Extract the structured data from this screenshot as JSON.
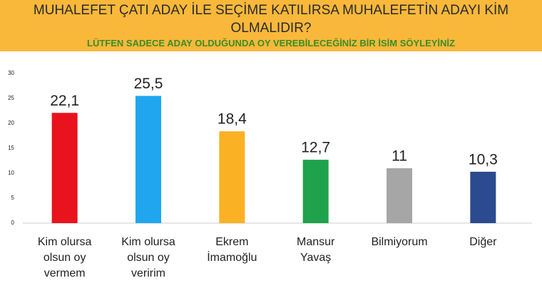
{
  "chart_data": {
    "type": "bar",
    "title": "MUHALEFET ÇATI ADAY İLE SEÇİME KATILIRSA MUHALEFETİN ADAYI KİM OLMALIDIR?",
    "subtitle": "LÜTFEN SADECE ADAY OLDUĞUNDA OY VEREBİLECEĞİNİZ BİR İSİM SÖYLEYİNİZ",
    "categories": [
      [
        "Kim olursa",
        "olsun oy",
        "vermem"
      ],
      [
        "Kim olursa",
        "olsun oy",
        "veririm"
      ],
      [
        "Ekrem",
        "İmamoğlu"
      ],
      [
        "Mansur",
        "Yavaş"
      ],
      [
        "Bilmiyorum"
      ],
      [
        "Diğer"
      ]
    ],
    "values": [
      22.1,
      25.5,
      18.4,
      12.7,
      11,
      10.3
    ],
    "value_labels": [
      "22,1",
      "25,5",
      "18,4",
      "12,7",
      "11",
      "10,3"
    ],
    "colors": [
      "#e8131c",
      "#1fa6ef",
      "#fbb124",
      "#1fa24b",
      "#a6a6a6",
      "#2b4a8f"
    ],
    "ylim": [
      0,
      30
    ],
    "yticks": [
      0,
      5,
      10,
      15,
      20,
      25,
      30
    ],
    "grid": false
  }
}
